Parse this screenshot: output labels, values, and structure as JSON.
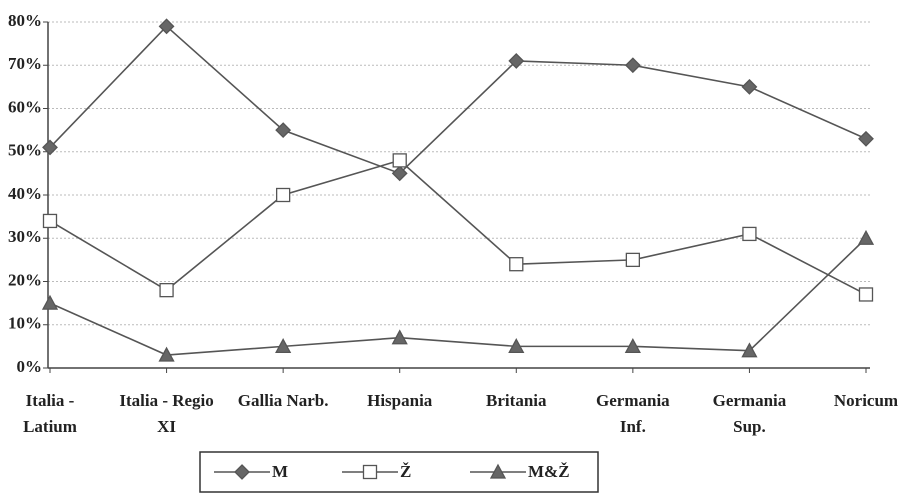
{
  "chart_data": {
    "type": "line",
    "categories": [
      "Italia - Latium",
      "Italia - Regio XI",
      "Gallia Narb.",
      "Hispania",
      "Britania",
      "Germania Inf.",
      "Germania Sup.",
      "Noricum"
    ],
    "series": [
      {
        "name": "M",
        "color": "#555555",
        "marker": "diamond",
        "values": [
          51,
          79,
          55,
          45,
          71,
          70,
          65,
          53
        ]
      },
      {
        "name": "Ž",
        "color": "#555555",
        "marker": "square",
        "values": [
          34,
          18,
          40,
          48,
          24,
          25,
          31,
          17
        ]
      },
      {
        "name": "M&Ž",
        "color": "#555555",
        "marker": "triangle",
        "values": [
          15,
          3,
          5,
          7,
          5,
          5,
          4,
          30
        ]
      }
    ],
    "ylim": [
      0,
      80
    ],
    "yticks": [
      {
        "value": 0,
        "label": "0%"
      },
      {
        "value": 10,
        "label": "10%"
      },
      {
        "value": 20,
        "label": "20%"
      },
      {
        "value": 30,
        "label": "30%"
      },
      {
        "value": 40,
        "label": "40%"
      },
      {
        "value": 50,
        "label": "50%"
      },
      {
        "value": 60,
        "label": "60%"
      },
      {
        "value": 70,
        "label": "70%"
      },
      {
        "value": 80,
        "label": "80%"
      }
    ],
    "grid": true
  }
}
